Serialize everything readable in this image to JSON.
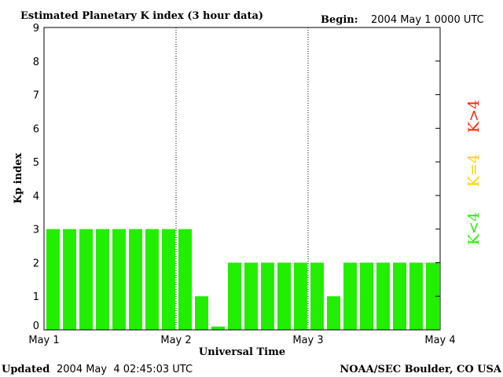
{
  "header": {
    "title": "Estimated Planetary K index (3 hour data)",
    "begin_label": "Begin:",
    "begin_value": "2004 May 1 0000 UTC"
  },
  "footer": {
    "updated_label": "Updated",
    "updated_value": "2004 May  4 02:45:03 UTC",
    "source": "NOAA/SEC Boulder, CO USA"
  },
  "legend": {
    "gt4": {
      "label": "K>4",
      "color": "#ff2000"
    },
    "eq4": {
      "label": "K=4",
      "color": "#ffd000"
    },
    "lt4": {
      "label": "K<4",
      "color": "#22ee00"
    }
  },
  "chart_data": {
    "type": "bar",
    "title": "Estimated Planetary K index (3 hour data)",
    "xlabel": "Universal Time",
    "ylabel": "Kp index",
    "ylim": [
      0,
      9
    ],
    "yticks": [
      "0",
      "1",
      "2",
      "3",
      "4",
      "5",
      "6",
      "7",
      "8",
      "9"
    ],
    "xticks": [
      "May 1",
      "May 2",
      "May 3",
      "May 4"
    ],
    "day_separators": [
      "May 2",
      "May 3"
    ],
    "grid": false,
    "values": [
      3,
      3,
      3,
      3,
      3,
      3,
      3,
      3,
      3,
      1,
      0.1,
      2,
      2,
      2,
      2,
      2,
      2,
      1,
      2,
      2,
      2,
      2,
      2,
      2
    ],
    "bar_color": "#22ee00"
  }
}
